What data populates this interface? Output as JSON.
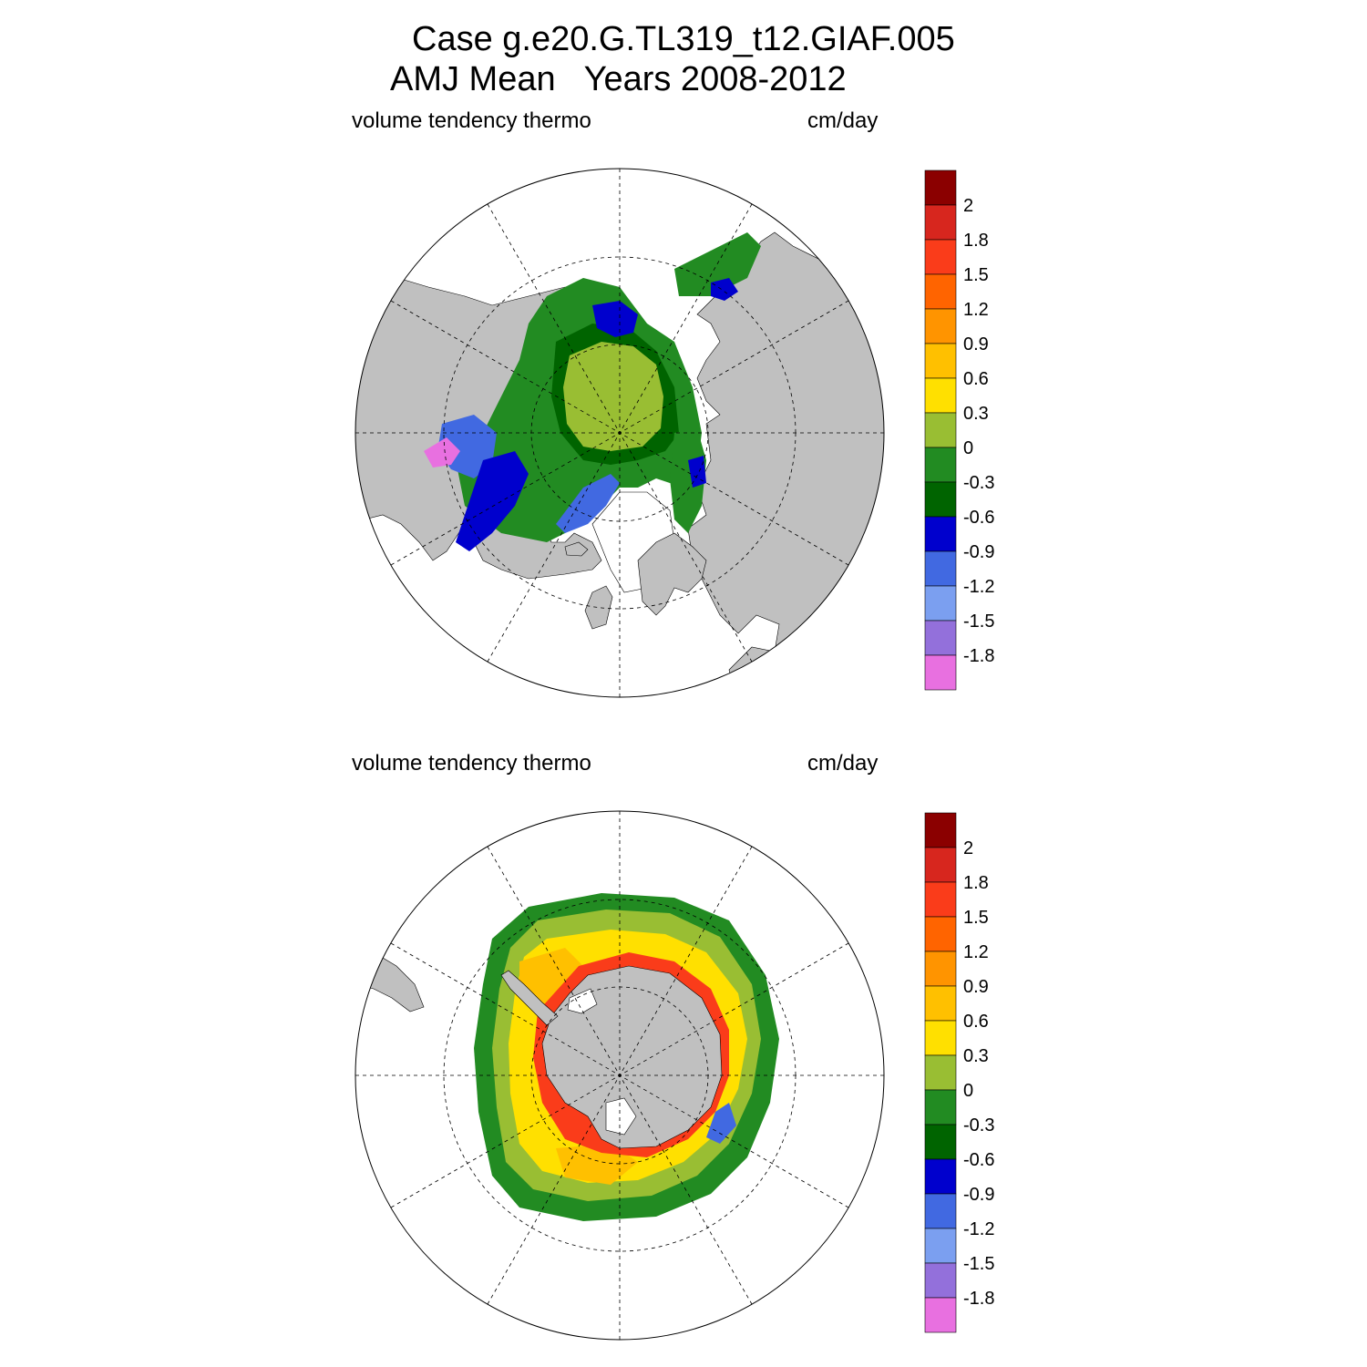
{
  "title": {
    "line1": "Case g.e20.G.TL319_t12.GIAF.005",
    "line2": "AMJ Mean   Years 2008-2012"
  },
  "colorbar": {
    "labels": [
      "2",
      "1.8",
      "1.5",
      "1.2",
      "0.9",
      "0.6",
      "0.3",
      "0",
      "-0.3",
      "-0.6",
      "-0.9",
      "-1.2",
      "-1.5",
      "-1.8"
    ],
    "colors": [
      "#8b0000",
      "#d7261e",
      "#fa3c1a",
      "#ff6400",
      "#ff9400",
      "#ffc000",
      "#ffe000",
      "#99be33",
      "#228b22",
      "#006400",
      "#0000cd",
      "#4169e1",
      "#7b9ff0",
      "#9370db",
      "#e870e0"
    ]
  },
  "panels": [
    {
      "id": "arctic",
      "left_label": "volume tendency thermo",
      "right_label": "cm/day",
      "hemisphere": "north"
    },
    {
      "id": "antarctic",
      "left_label": "volume tendency thermo",
      "right_label": "cm/day",
      "hemisphere": "south"
    }
  ]
}
